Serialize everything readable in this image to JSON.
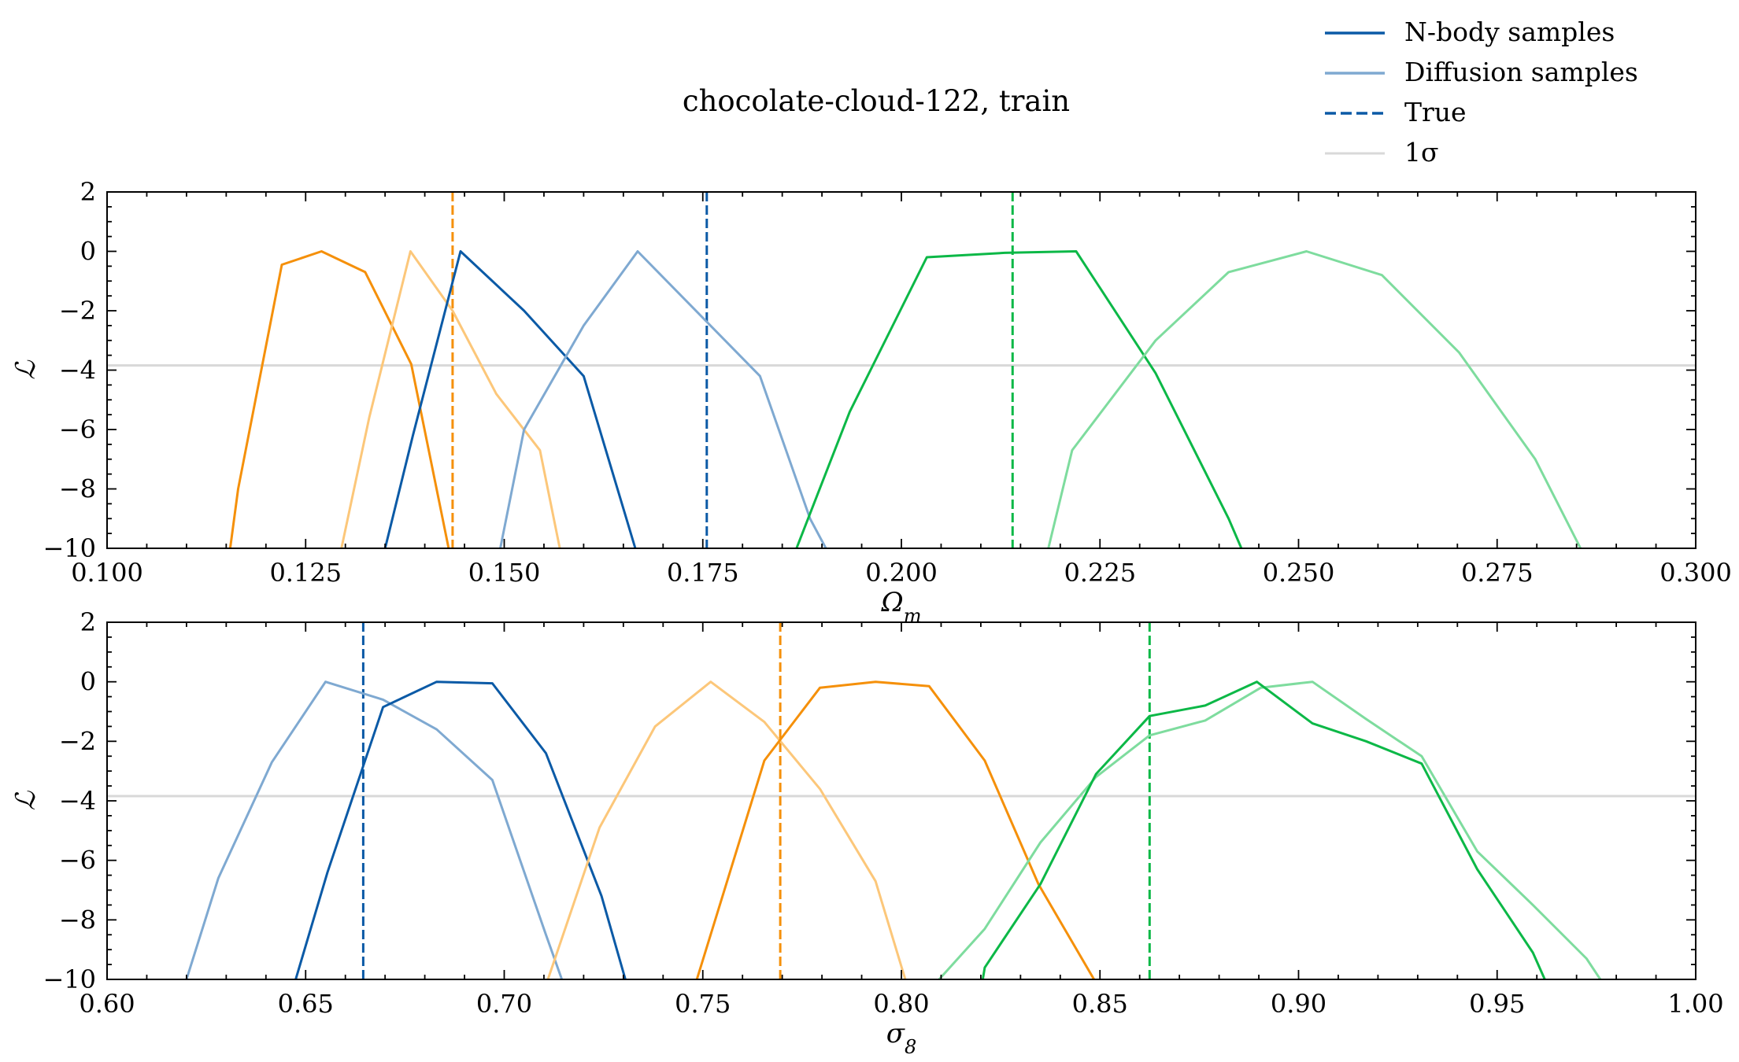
{
  "title": "chocolate-cloud-122, train",
  "legend": {
    "placement": "top-right",
    "entries": [
      {
        "label": "N-body samples",
        "style": "solid",
        "color": "#0b5aa6"
      },
      {
        "label": "Diffusion samples",
        "style": "solid",
        "color": "#7fa9d1"
      },
      {
        "label": "True",
        "style": "dashed",
        "color": "#0b5aa6"
      },
      {
        "label": "1σ",
        "style": "solid",
        "color": "#d9d9d9"
      }
    ]
  },
  "colors": {
    "blue_dark": "#0b5aa6",
    "blue_light": "#7fa9d1",
    "orange_dark": "#f5900a",
    "orange_light": "#fcc77a",
    "green_dark": "#0cb847",
    "green_light": "#7edc9e",
    "sigma_line": "#d9d9d9"
  },
  "chart_data": [
    {
      "type": "line",
      "xlabel": "Ωm",
      "ylabel": "ℒ",
      "xlim": [
        0.1,
        0.3
      ],
      "ylim": [
        -10,
        2
      ],
      "xticks": [
        "0.100",
        "0.125",
        "0.150",
        "0.175",
        "0.200",
        "0.225",
        "0.250",
        "0.275",
        "0.300"
      ],
      "yticks": [
        "2",
        "0",
        "−2",
        "−4",
        "−6",
        "−8",
        "−10"
      ],
      "sigma_level": -3.84,
      "true_lines": [
        {
          "x": 0.1435,
          "color": "#f5900a"
        },
        {
          "x": 0.1755,
          "color": "#0b5aa6"
        },
        {
          "x": 0.214,
          "color": "#0cb847"
        }
      ],
      "series": [
        {
          "color": "#f5900a",
          "x": [
            0.1155,
            0.1165,
            0.122,
            0.127,
            0.1325,
            0.1383,
            0.143
          ],
          "y": [
            -10,
            -8,
            -0.45,
            0,
            -0.7,
            -3.8,
            -10
          ]
        },
        {
          "color": "#fcc77a",
          "x": [
            0.1295,
            0.133,
            0.1382,
            0.1435,
            0.149,
            0.1545,
            0.157
          ],
          "y": [
            -10,
            -5.6,
            0,
            -2,
            -4.8,
            -6.7,
            -10
          ]
        },
        {
          "color": "#0b5aa6",
          "x": [
            0.135,
            0.1385,
            0.1445,
            0.1525,
            0.16,
            0.1665
          ],
          "y": [
            -10,
            -6.2,
            0,
            -2,
            -4.2,
            -10
          ]
        },
        {
          "color": "#7fa9d1",
          "x": [
            0.1495,
            0.1525,
            0.16,
            0.1668,
            0.1822,
            0.1885,
            0.1905
          ],
          "y": [
            -10,
            -6,
            -2.5,
            0,
            -4.2,
            -9,
            -10
          ]
        },
        {
          "color": "#0cb847",
          "x": [
            0.1868,
            0.1935,
            0.2032,
            0.213,
            0.222,
            0.232,
            0.2412,
            0.2428
          ],
          "y": [
            -10,
            -5.4,
            -0.2,
            -0.05,
            0,
            -4.1,
            -9,
            -10
          ]
        },
        {
          "color": "#7edc9e",
          "x": [
            0.2185,
            0.2215,
            0.232,
            0.2412,
            0.251,
            0.2605,
            0.2702,
            0.2798,
            0.2855
          ],
          "y": [
            -10,
            -6.7,
            -3,
            -0.7,
            0,
            -0.8,
            -3.4,
            -7,
            -10
          ]
        }
      ]
    },
    {
      "type": "line",
      "xlabel": "σ8",
      "ylabel": "ℒ",
      "xlim": [
        0.6,
        1.0
      ],
      "ylim": [
        -10,
        2
      ],
      "xticks": [
        "0.60",
        "0.65",
        "0.70",
        "0.75",
        "0.80",
        "0.85",
        "0.90",
        "0.95",
        "1.00"
      ],
      "yticks": [
        "2",
        "0",
        "−2",
        "−4",
        "−6",
        "−8",
        "−10"
      ],
      "sigma_level": -3.84,
      "true_lines": [
        {
          "x": 0.6645,
          "color": "#0b5aa6"
        },
        {
          "x": 0.7695,
          "color": "#f5900a"
        },
        {
          "x": 0.8625,
          "color": "#0cb847"
        }
      ],
      "series": [
        {
          "color": "#7fa9d1",
          "x": [
            0.62,
            0.628,
            0.6415,
            0.655,
            0.6695,
            0.683,
            0.697,
            0.7105,
            0.7145
          ],
          "y": [
            -10,
            -6.6,
            -2.7,
            0,
            -0.6,
            -1.6,
            -3.3,
            -8.5,
            -10
          ]
        },
        {
          "color": "#0b5aa6",
          "x": [
            0.6475,
            0.6555,
            0.6695,
            0.683,
            0.697,
            0.7105,
            0.7245,
            0.7305
          ],
          "y": [
            -10,
            -6.4,
            -0.85,
            0,
            -0.05,
            -2.4,
            -7.2,
            -10
          ]
        },
        {
          "color": "#fcc77a",
          "x": [
            0.711,
            0.724,
            0.738,
            0.752,
            0.7655,
            0.7795,
            0.7935,
            0.801
          ],
          "y": [
            -10,
            -4.9,
            -1.5,
            0,
            -1.35,
            -3.6,
            -6.7,
            -10
          ]
        },
        {
          "color": "#f5900a",
          "x": [
            0.7485,
            0.7655,
            0.7795,
            0.7935,
            0.807,
            0.821,
            0.8345,
            0.8485
          ],
          "y": [
            -10,
            -2.65,
            -0.2,
            0,
            -0.15,
            -2.65,
            -6.8,
            -10
          ]
        },
        {
          "color": "#7edc9e",
          "x": [
            0.8095,
            0.821,
            0.835,
            0.849,
            0.8625,
            0.8765,
            0.8905,
            0.9035,
            0.917,
            0.931,
            0.945,
            0.959,
            0.9725,
            0.976
          ],
          "y": [
            -10,
            -8.3,
            -5.4,
            -3.2,
            -1.8,
            -1.3,
            -0.2,
            0,
            -1.25,
            -2.5,
            -5.7,
            -7.5,
            -9.3,
            -10
          ]
        },
        {
          "color": "#0cb847",
          "x": [
            0.8205,
            0.821,
            0.835,
            0.849,
            0.8625,
            0.8765,
            0.8895,
            0.9035,
            0.917,
            0.931,
            0.945,
            0.959,
            0.962
          ],
          "y": [
            -10,
            -9.6,
            -6.8,
            -3.1,
            -1.15,
            -0.8,
            0,
            -1.4,
            -2,
            -2.75,
            -6.3,
            -9.1,
            -10
          ]
        }
      ]
    }
  ]
}
